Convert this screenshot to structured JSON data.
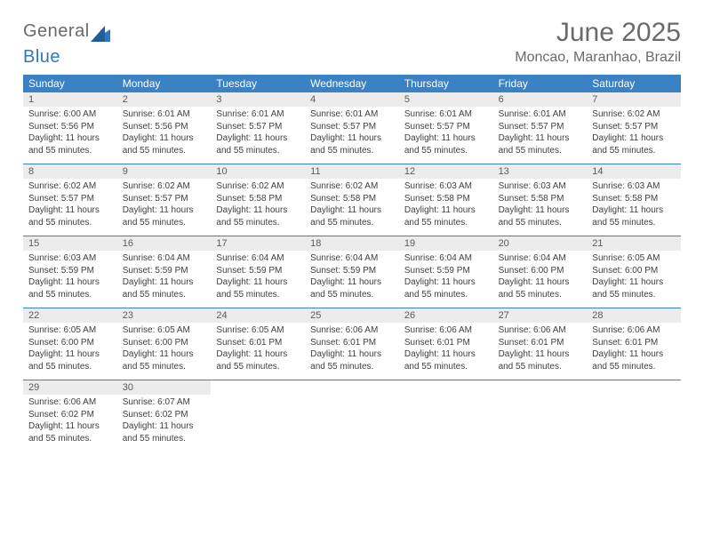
{
  "brand": {
    "word1": "General",
    "word2": "Blue",
    "color_general": "#6a6a6a",
    "color_blue": "#2f78bf",
    "icon_fill": "#2f78bf"
  },
  "header": {
    "month_title": "June 2025",
    "location": "Moncao, Maranhao, Brazil"
  },
  "colors": {
    "header_bg": "#3a82c4",
    "header_text": "#ffffff",
    "daynum_bg": "#ececec",
    "rule": "#3a82c4",
    "body_text": "#404040"
  },
  "weekdays": [
    "Sunday",
    "Monday",
    "Tuesday",
    "Wednesday",
    "Thursday",
    "Friday",
    "Saturday"
  ],
  "labels": {
    "sunrise": "Sunrise:",
    "sunset": "Sunset:",
    "daylight_prefix": "Daylight:"
  },
  "days": [
    {
      "n": 1,
      "sunrise": "6:00 AM",
      "sunset": "5:56 PM",
      "daylight": "11 hours and 55 minutes."
    },
    {
      "n": 2,
      "sunrise": "6:01 AM",
      "sunset": "5:56 PM",
      "daylight": "11 hours and 55 minutes."
    },
    {
      "n": 3,
      "sunrise": "6:01 AM",
      "sunset": "5:57 PM",
      "daylight": "11 hours and 55 minutes."
    },
    {
      "n": 4,
      "sunrise": "6:01 AM",
      "sunset": "5:57 PM",
      "daylight": "11 hours and 55 minutes."
    },
    {
      "n": 5,
      "sunrise": "6:01 AM",
      "sunset": "5:57 PM",
      "daylight": "11 hours and 55 minutes."
    },
    {
      "n": 6,
      "sunrise": "6:01 AM",
      "sunset": "5:57 PM",
      "daylight": "11 hours and 55 minutes."
    },
    {
      "n": 7,
      "sunrise": "6:02 AM",
      "sunset": "5:57 PM",
      "daylight": "11 hours and 55 minutes."
    },
    {
      "n": 8,
      "sunrise": "6:02 AM",
      "sunset": "5:57 PM",
      "daylight": "11 hours and 55 minutes."
    },
    {
      "n": 9,
      "sunrise": "6:02 AM",
      "sunset": "5:57 PM",
      "daylight": "11 hours and 55 minutes."
    },
    {
      "n": 10,
      "sunrise": "6:02 AM",
      "sunset": "5:58 PM",
      "daylight": "11 hours and 55 minutes."
    },
    {
      "n": 11,
      "sunrise": "6:02 AM",
      "sunset": "5:58 PM",
      "daylight": "11 hours and 55 minutes."
    },
    {
      "n": 12,
      "sunrise": "6:03 AM",
      "sunset": "5:58 PM",
      "daylight": "11 hours and 55 minutes."
    },
    {
      "n": 13,
      "sunrise": "6:03 AM",
      "sunset": "5:58 PM",
      "daylight": "11 hours and 55 minutes."
    },
    {
      "n": 14,
      "sunrise": "6:03 AM",
      "sunset": "5:58 PM",
      "daylight": "11 hours and 55 minutes."
    },
    {
      "n": 15,
      "sunrise": "6:03 AM",
      "sunset": "5:59 PM",
      "daylight": "11 hours and 55 minutes."
    },
    {
      "n": 16,
      "sunrise": "6:04 AM",
      "sunset": "5:59 PM",
      "daylight": "11 hours and 55 minutes."
    },
    {
      "n": 17,
      "sunrise": "6:04 AM",
      "sunset": "5:59 PM",
      "daylight": "11 hours and 55 minutes."
    },
    {
      "n": 18,
      "sunrise": "6:04 AM",
      "sunset": "5:59 PM",
      "daylight": "11 hours and 55 minutes."
    },
    {
      "n": 19,
      "sunrise": "6:04 AM",
      "sunset": "5:59 PM",
      "daylight": "11 hours and 55 minutes."
    },
    {
      "n": 20,
      "sunrise": "6:04 AM",
      "sunset": "6:00 PM",
      "daylight": "11 hours and 55 minutes."
    },
    {
      "n": 21,
      "sunrise": "6:05 AM",
      "sunset": "6:00 PM",
      "daylight": "11 hours and 55 minutes."
    },
    {
      "n": 22,
      "sunrise": "6:05 AM",
      "sunset": "6:00 PM",
      "daylight": "11 hours and 55 minutes."
    },
    {
      "n": 23,
      "sunrise": "6:05 AM",
      "sunset": "6:00 PM",
      "daylight": "11 hours and 55 minutes."
    },
    {
      "n": 24,
      "sunrise": "6:05 AM",
      "sunset": "6:01 PM",
      "daylight": "11 hours and 55 minutes."
    },
    {
      "n": 25,
      "sunrise": "6:06 AM",
      "sunset": "6:01 PM",
      "daylight": "11 hours and 55 minutes."
    },
    {
      "n": 26,
      "sunrise": "6:06 AM",
      "sunset": "6:01 PM",
      "daylight": "11 hours and 55 minutes."
    },
    {
      "n": 27,
      "sunrise": "6:06 AM",
      "sunset": "6:01 PM",
      "daylight": "11 hours and 55 minutes."
    },
    {
      "n": 28,
      "sunrise": "6:06 AM",
      "sunset": "6:01 PM",
      "daylight": "11 hours and 55 minutes."
    },
    {
      "n": 29,
      "sunrise": "6:06 AM",
      "sunset": "6:02 PM",
      "daylight": "11 hours and 55 minutes."
    },
    {
      "n": 30,
      "sunrise": "6:07 AM",
      "sunset": "6:02 PM",
      "daylight": "11 hours and 55 minutes."
    }
  ],
  "calendar": {
    "first_weekday_index": 0,
    "total_cells": 35
  }
}
